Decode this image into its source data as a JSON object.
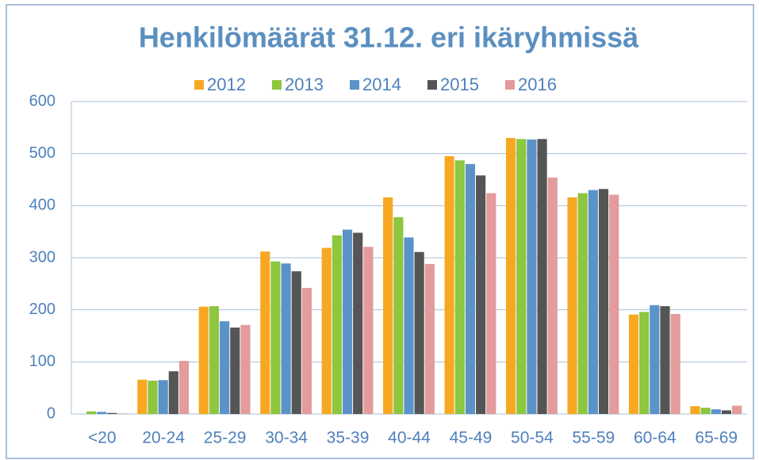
{
  "chart_data": {
    "type": "bar",
    "title": "Henkilömäärät 31.12. eri ikäryhmissä",
    "categories": [
      "<20",
      "20-24",
      "25-29",
      "30-34",
      "35-39",
      "40-44",
      "45-49",
      "50-54",
      "55-59",
      "60-64",
      "65-69"
    ],
    "series": [
      {
        "name": "2012",
        "color": "#f7a823",
        "values": [
          0,
          66,
          206,
          312,
          319,
          416,
          495,
          530,
          416,
          191,
          15
        ]
      },
      {
        "name": "2013",
        "color": "#8dc63f",
        "values": [
          5,
          64,
          207,
          293,
          343,
          378,
          487,
          528,
          424,
          196,
          12
        ]
      },
      {
        "name": "2014",
        "color": "#5b93c9",
        "values": [
          4,
          65,
          178,
          289,
          354,
          339,
          480,
          527,
          430,
          209,
          9
        ]
      },
      {
        "name": "2015",
        "color": "#555555",
        "values": [
          2,
          82,
          166,
          274,
          348,
          311,
          458,
          528,
          432,
          207,
          7
        ]
      },
      {
        "name": "2016",
        "color": "#e39b9b",
        "values": [
          1,
          102,
          171,
          242,
          321,
          288,
          424,
          454,
          421,
          192,
          16
        ]
      }
    ],
    "ylim": [
      0,
      600
    ],
    "yticks": [
      0,
      100,
      200,
      300,
      400,
      500,
      600
    ],
    "grid": true,
    "legend": "top"
  }
}
